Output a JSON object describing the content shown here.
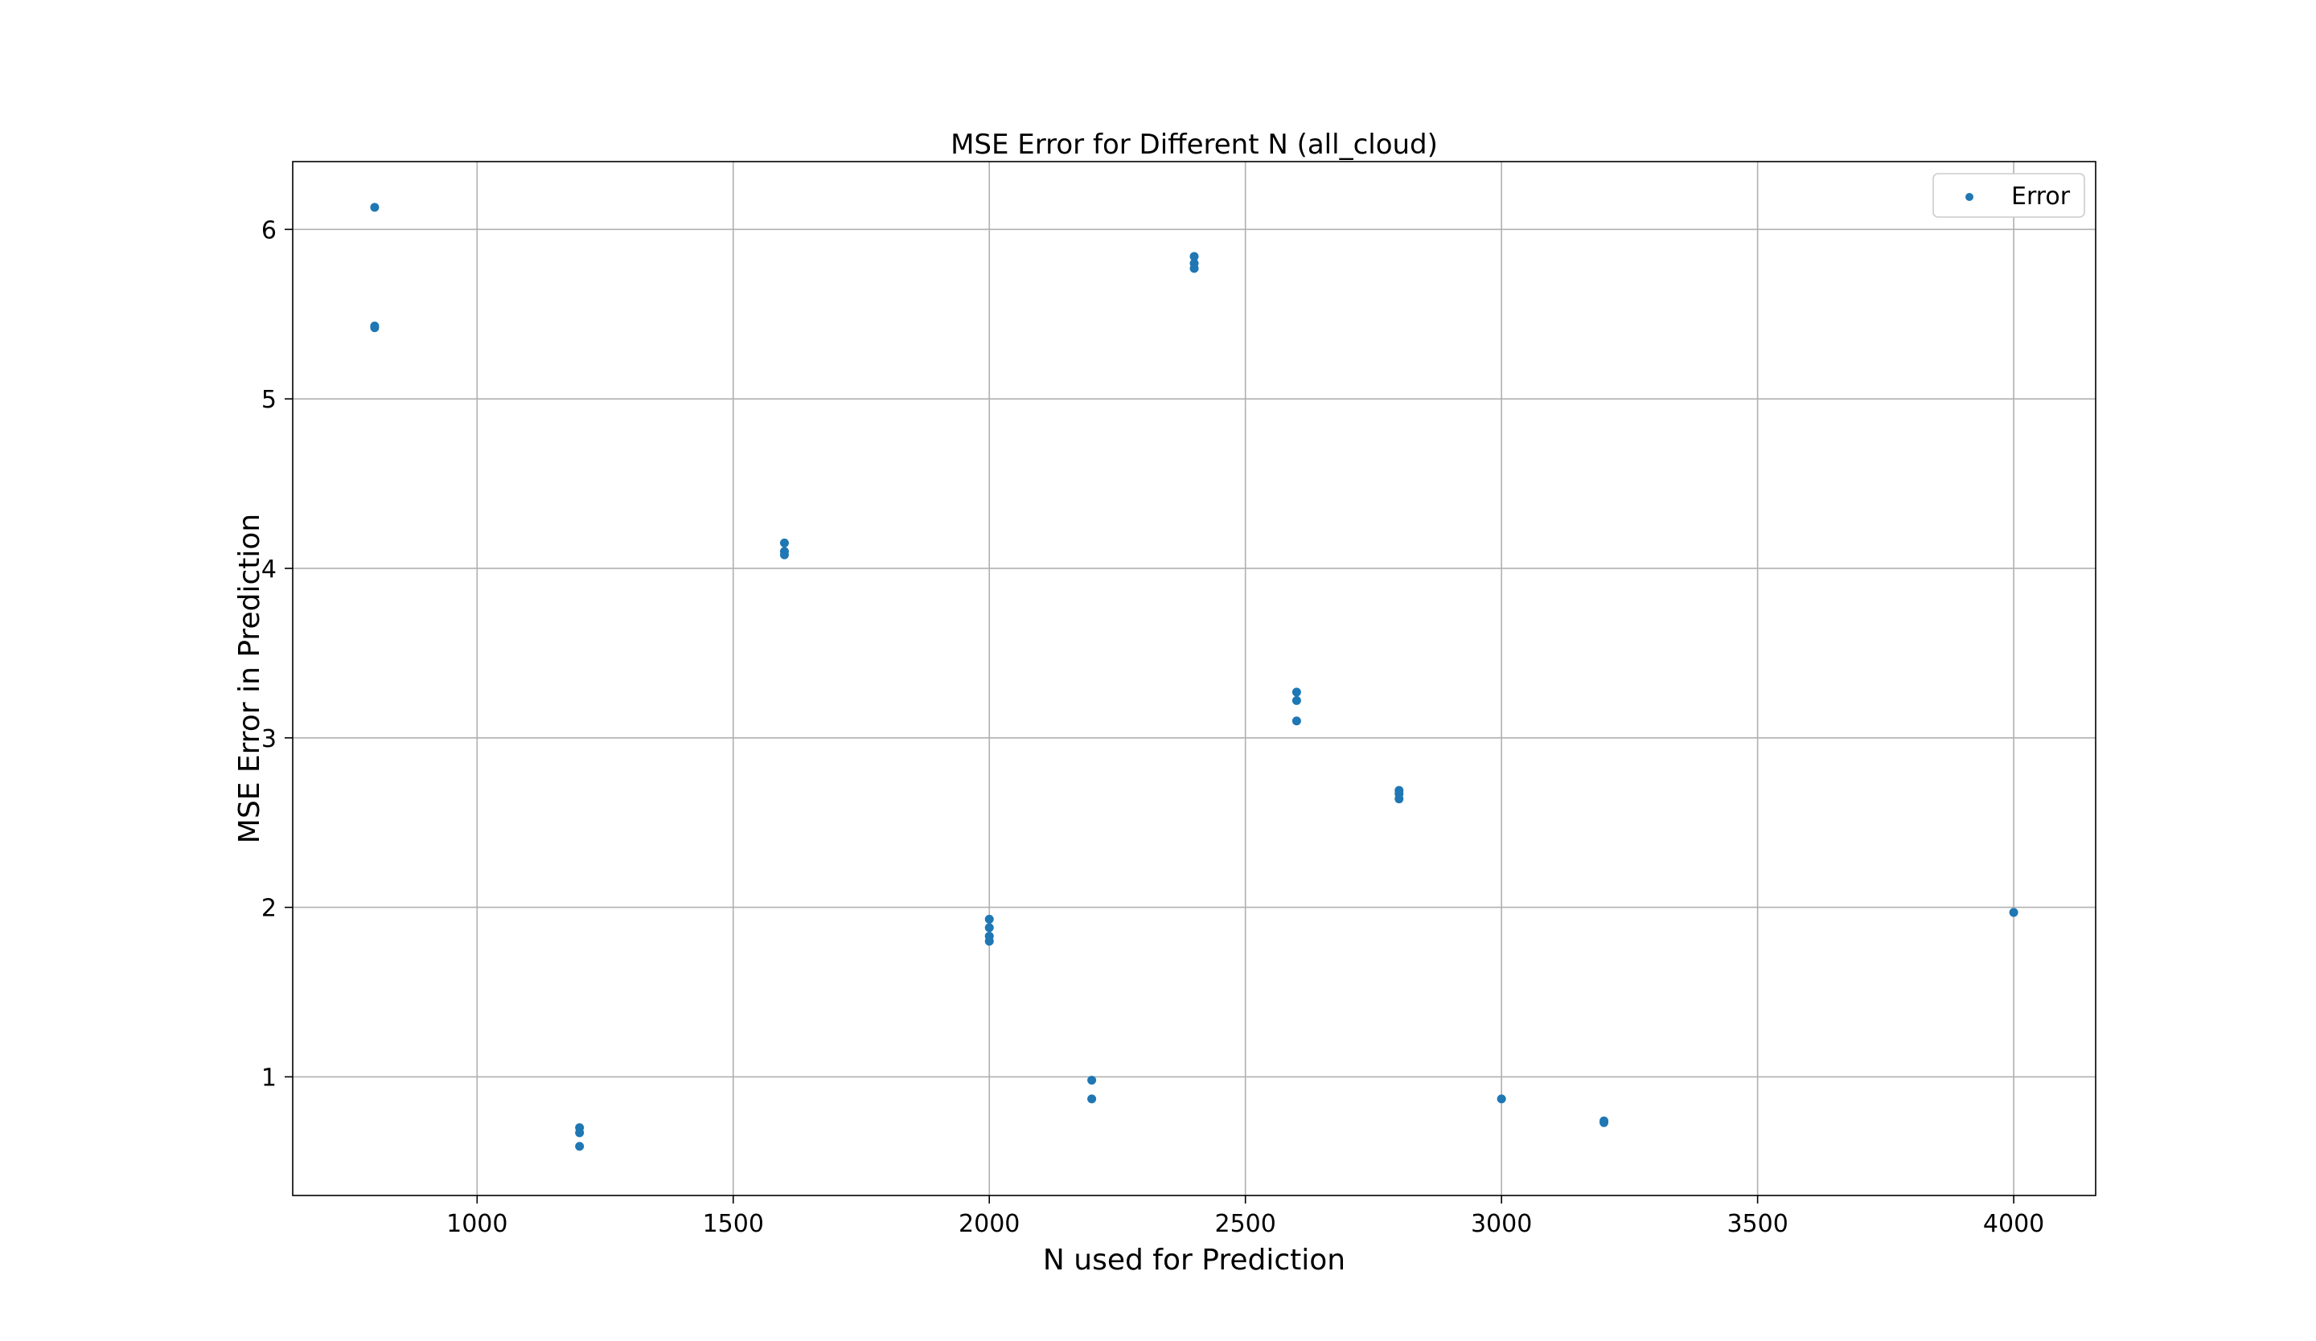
{
  "chart_data": {
    "type": "scatter",
    "title": "MSE Error for Different N (all_cloud)",
    "xlabel": "N used for Prediction",
    "ylabel": "MSE Error in Prediction",
    "xlim": [
      640,
      4160
    ],
    "ylim": [
      0.3,
      6.4
    ],
    "xticks": [
      1000,
      1500,
      2000,
      2500,
      3000,
      3500,
      4000
    ],
    "yticks": [
      1,
      2,
      3,
      4,
      5,
      6
    ],
    "grid": true,
    "legend_position": "top-right",
    "series": [
      {
        "name": "Error",
        "color": "#1f77b4",
        "points": [
          {
            "x": 800,
            "y": 6.13
          },
          {
            "x": 800,
            "y": 5.43
          },
          {
            "x": 800,
            "y": 5.42
          },
          {
            "x": 1200,
            "y": 0.7
          },
          {
            "x": 1200,
            "y": 0.67
          },
          {
            "x": 1200,
            "y": 0.59
          },
          {
            "x": 1600,
            "y": 4.15
          },
          {
            "x": 1600,
            "y": 4.1
          },
          {
            "x": 1600,
            "y": 4.08
          },
          {
            "x": 2000,
            "y": 1.93
          },
          {
            "x": 2000,
            "y": 1.88
          },
          {
            "x": 2000,
            "y": 1.83
          },
          {
            "x": 2000,
            "y": 1.8
          },
          {
            "x": 2200,
            "y": 0.98
          },
          {
            "x": 2200,
            "y": 0.87
          },
          {
            "x": 2400,
            "y": 5.84
          },
          {
            "x": 2400,
            "y": 5.8
          },
          {
            "x": 2400,
            "y": 5.77
          },
          {
            "x": 2600,
            "y": 3.27
          },
          {
            "x": 2600,
            "y": 3.22
          },
          {
            "x": 2600,
            "y": 3.1
          },
          {
            "x": 2800,
            "y": 2.69
          },
          {
            "x": 2800,
            "y": 2.67
          },
          {
            "x": 2800,
            "y": 2.64
          },
          {
            "x": 3000,
            "y": 0.87
          },
          {
            "x": 3200,
            "y": 0.74
          },
          {
            "x": 3200,
            "y": 0.73
          },
          {
            "x": 4000,
            "y": 1.97
          }
        ]
      }
    ]
  }
}
